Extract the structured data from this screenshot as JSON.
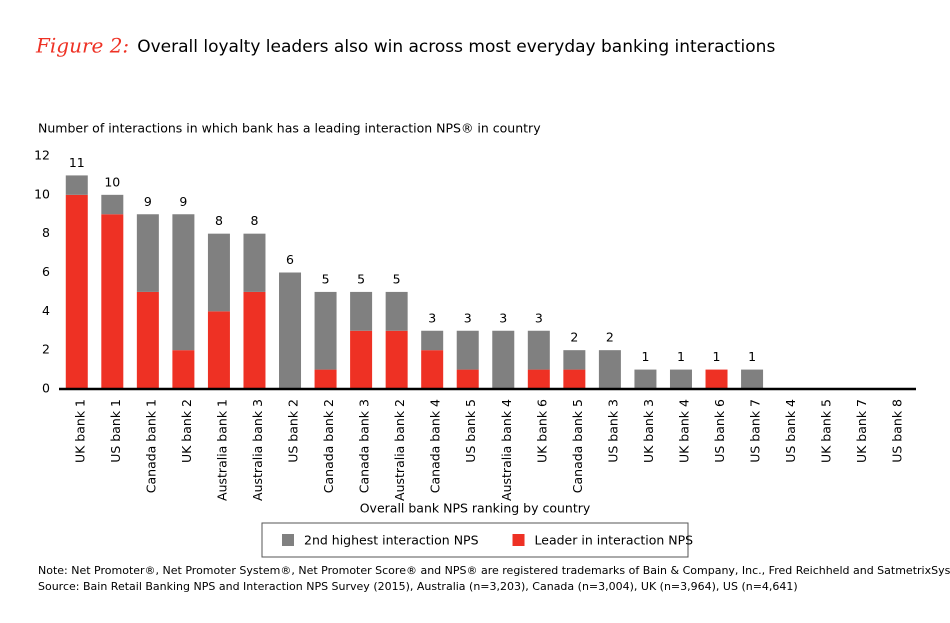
{
  "chart_data": {
    "type": "stacked_bar",
    "figure_label": "Figure 2:",
    "title": "Overall loyalty leaders also win across most everyday banking interactions",
    "y_label": "Number of interactions in which bank has a leading interaction NPS® in country",
    "x_label": "Overall bank NPS ranking by country",
    "categories": [
      "UK bank 1",
      "US bank 1",
      "Canada bank 1",
      "UK bank 2",
      "Australia bank 1",
      "Australia bank 3",
      "US bank 2",
      "Canada bank 2",
      "Canada bank 3",
      "Australia bank 2",
      "Canada bank 4",
      "US bank 5",
      "Australia bank 4",
      "UK bank 6",
      "Canada bank 5",
      "US bank 3",
      "UK bank 3",
      "UK bank 4",
      "US bank 6",
      "US bank 7",
      "US bank 4",
      "UK bank 5",
      "UK bank 7",
      "US bank 8"
    ],
    "series": [
      {
        "name": "Leader in interaction NPS",
        "color": "#ee3124",
        "values": [
          10,
          9,
          5,
          2,
          4,
          5,
          0,
          1,
          3,
          3,
          2,
          1,
          0,
          1,
          1,
          0,
          0,
          0,
          1,
          0,
          0,
          0,
          0,
          0
        ]
      },
      {
        "name": "2nd highest interaction NPS",
        "color": "#808080",
        "values": [
          1,
          1,
          4,
          7,
          4,
          3,
          6,
          4,
          2,
          2,
          1,
          2,
          3,
          2,
          1,
          2,
          1,
          1,
          0,
          1,
          0,
          0,
          0,
          0
        ]
      }
    ],
    "totals": [
      11,
      10,
      9,
      9,
      8,
      8,
      6,
      5,
      5,
      5,
      3,
      3,
      3,
      3,
      2,
      2,
      1,
      1,
      1,
      1,
      null,
      null,
      null,
      null
    ],
    "legend_order": [
      1,
      0
    ],
    "ylim": [
      0,
      12
    ],
    "yticks": [
      0,
      2,
      4,
      6,
      8,
      10,
      12
    ],
    "grid": false,
    "notes": [
      "Note: Net Promoter®, Net Promoter System®, Net Promoter Score® and NPS® are registered trademarks of Bain & Company, Inc., Fred Reichheld and SatmetrixSystems, Inc.",
      "Source: Bain Retail Banking NPS and Interaction NPS Survey (2015), Australia (n=3,203), Canada (n=3,004), UK (n=3,964), US (n=4,641)"
    ]
  }
}
